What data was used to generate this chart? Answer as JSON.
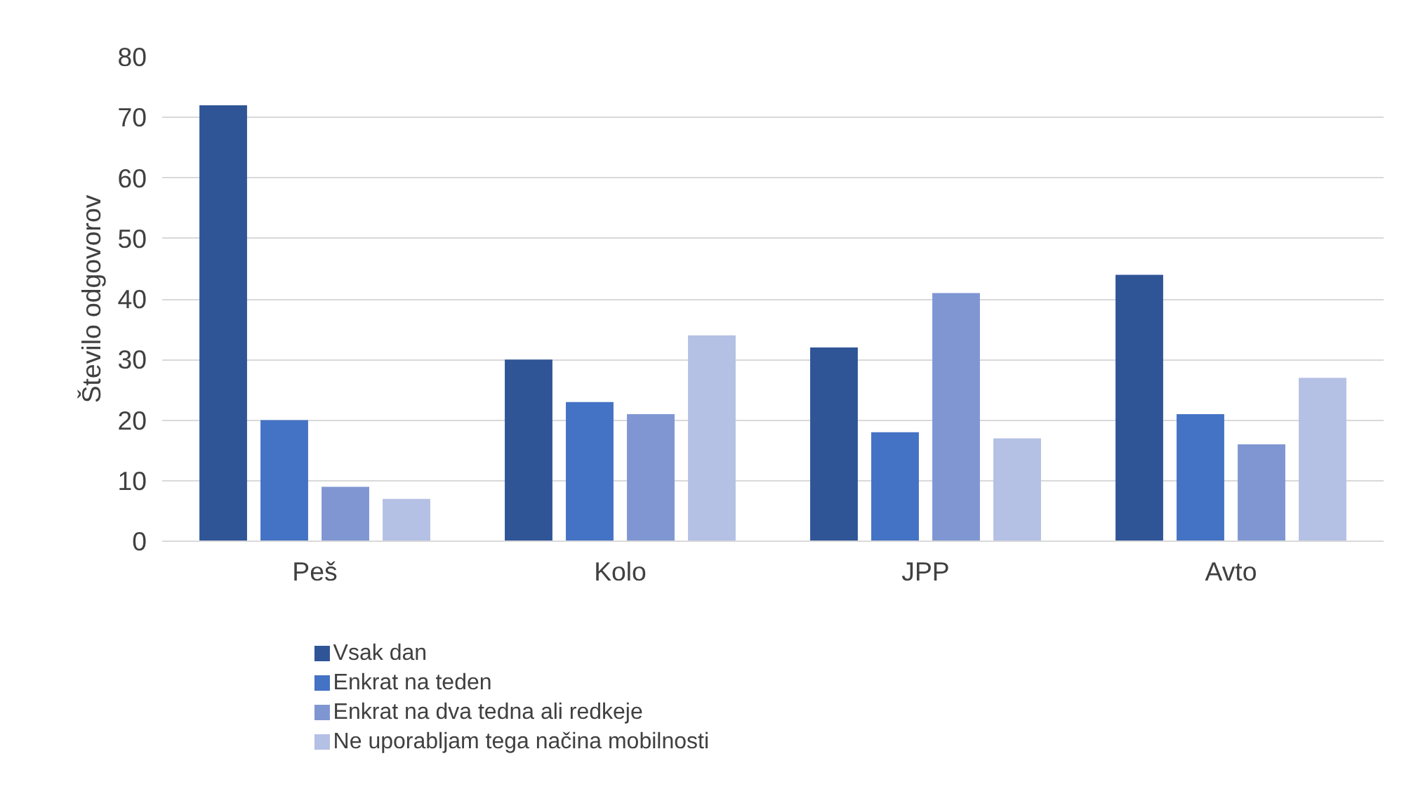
{
  "chart_data": {
    "type": "bar",
    "ylabel": "Število odgovorov",
    "categories": [
      "Peš",
      "Kolo",
      "JPP",
      "Avto"
    ],
    "series": [
      {
        "name": "Vsak dan",
        "color": "#2f5597",
        "values": [
          72,
          30,
          32,
          44
        ]
      },
      {
        "name": "Enkrat na teden",
        "color": "#4472c4",
        "values": [
          20,
          23,
          18,
          21
        ]
      },
      {
        "name": "Enkrat na dva tedna ali redkeje",
        "color": "#7f96d2",
        "values": [
          9,
          21,
          41,
          16
        ]
      },
      {
        "name": "Ne uporabljam tega načina mobilnosti",
        "color": "#b4c0e4",
        "values": [
          7,
          34,
          17,
          27
        ]
      }
    ],
    "ylim": [
      0,
      80
    ],
    "yticks": [
      0,
      10,
      20,
      30,
      40,
      50,
      60,
      70,
      80
    ],
    "grid": "y",
    "legend": "bottom left"
  }
}
